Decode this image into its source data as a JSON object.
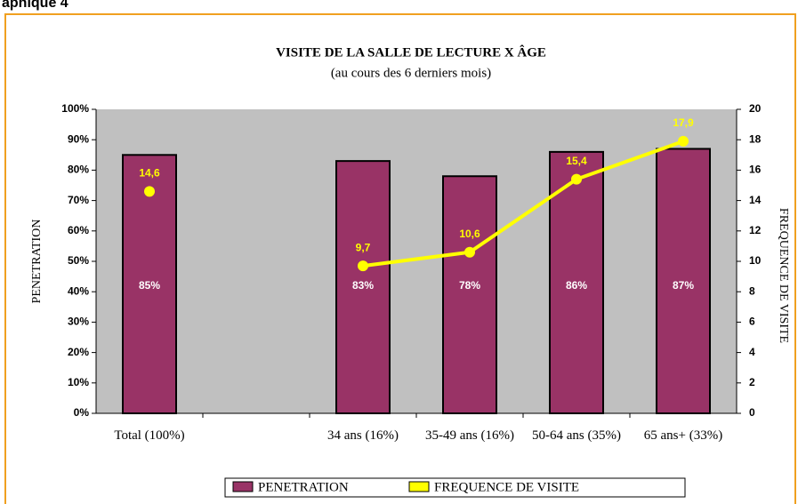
{
  "page_label": "aphique 4",
  "chart_data": {
    "type": "bar_line",
    "title": "VISITE DE LA SALLE DE LECTURE X ÂGE",
    "subtitle": "(au cours des 6 derniers mois)",
    "ylabel": "PENETRATION",
    "y2label": "FREQUENCE DE VISITE",
    "categories": [
      "Total (100%)",
      null,
      "34 ans (16%)",
      "35-49 ans (16%)",
      "50-64 ans (35%)",
      "65 ans+ (33%)"
    ],
    "series": [
      {
        "name": "PENETRATION",
        "type": "bar",
        "color": "#993366",
        "values": [
          85,
          null,
          83,
          78,
          86,
          87
        ],
        "value_labels": [
          "85%",
          null,
          "83%",
          "78%",
          "86%",
          "87%"
        ]
      },
      {
        "name": "FREQUENCE DE VISITE",
        "type": "line",
        "axis": "y2",
        "color": "#ffff00",
        "values": [
          14.6,
          null,
          9.7,
          10.6,
          15.4,
          17.9
        ],
        "value_labels": [
          "14,6",
          null,
          "9,7",
          "10,6",
          "15,4",
          "17,9"
        ]
      }
    ],
    "ylim": [
      0,
      100
    ],
    "yticks": [
      {
        "value": 0,
        "label": "0%"
      },
      {
        "value": 10,
        "label": "10%"
      },
      {
        "value": 20,
        "label": "20%"
      },
      {
        "value": 30,
        "label": "30%"
      },
      {
        "value": 40,
        "label": "40%"
      },
      {
        "value": 50,
        "label": "50%"
      },
      {
        "value": 60,
        "label": "60%"
      },
      {
        "value": 70,
        "label": "70%"
      },
      {
        "value": 80,
        "label": "80%"
      },
      {
        "value": 90,
        "label": "90%"
      },
      {
        "value": 100,
        "label": "100%"
      }
    ],
    "y2lim": [
      0,
      20
    ],
    "y2ticks": [
      0,
      2,
      4,
      6,
      8,
      10,
      12,
      14,
      16,
      18,
      20
    ],
    "legend": "bottom"
  }
}
